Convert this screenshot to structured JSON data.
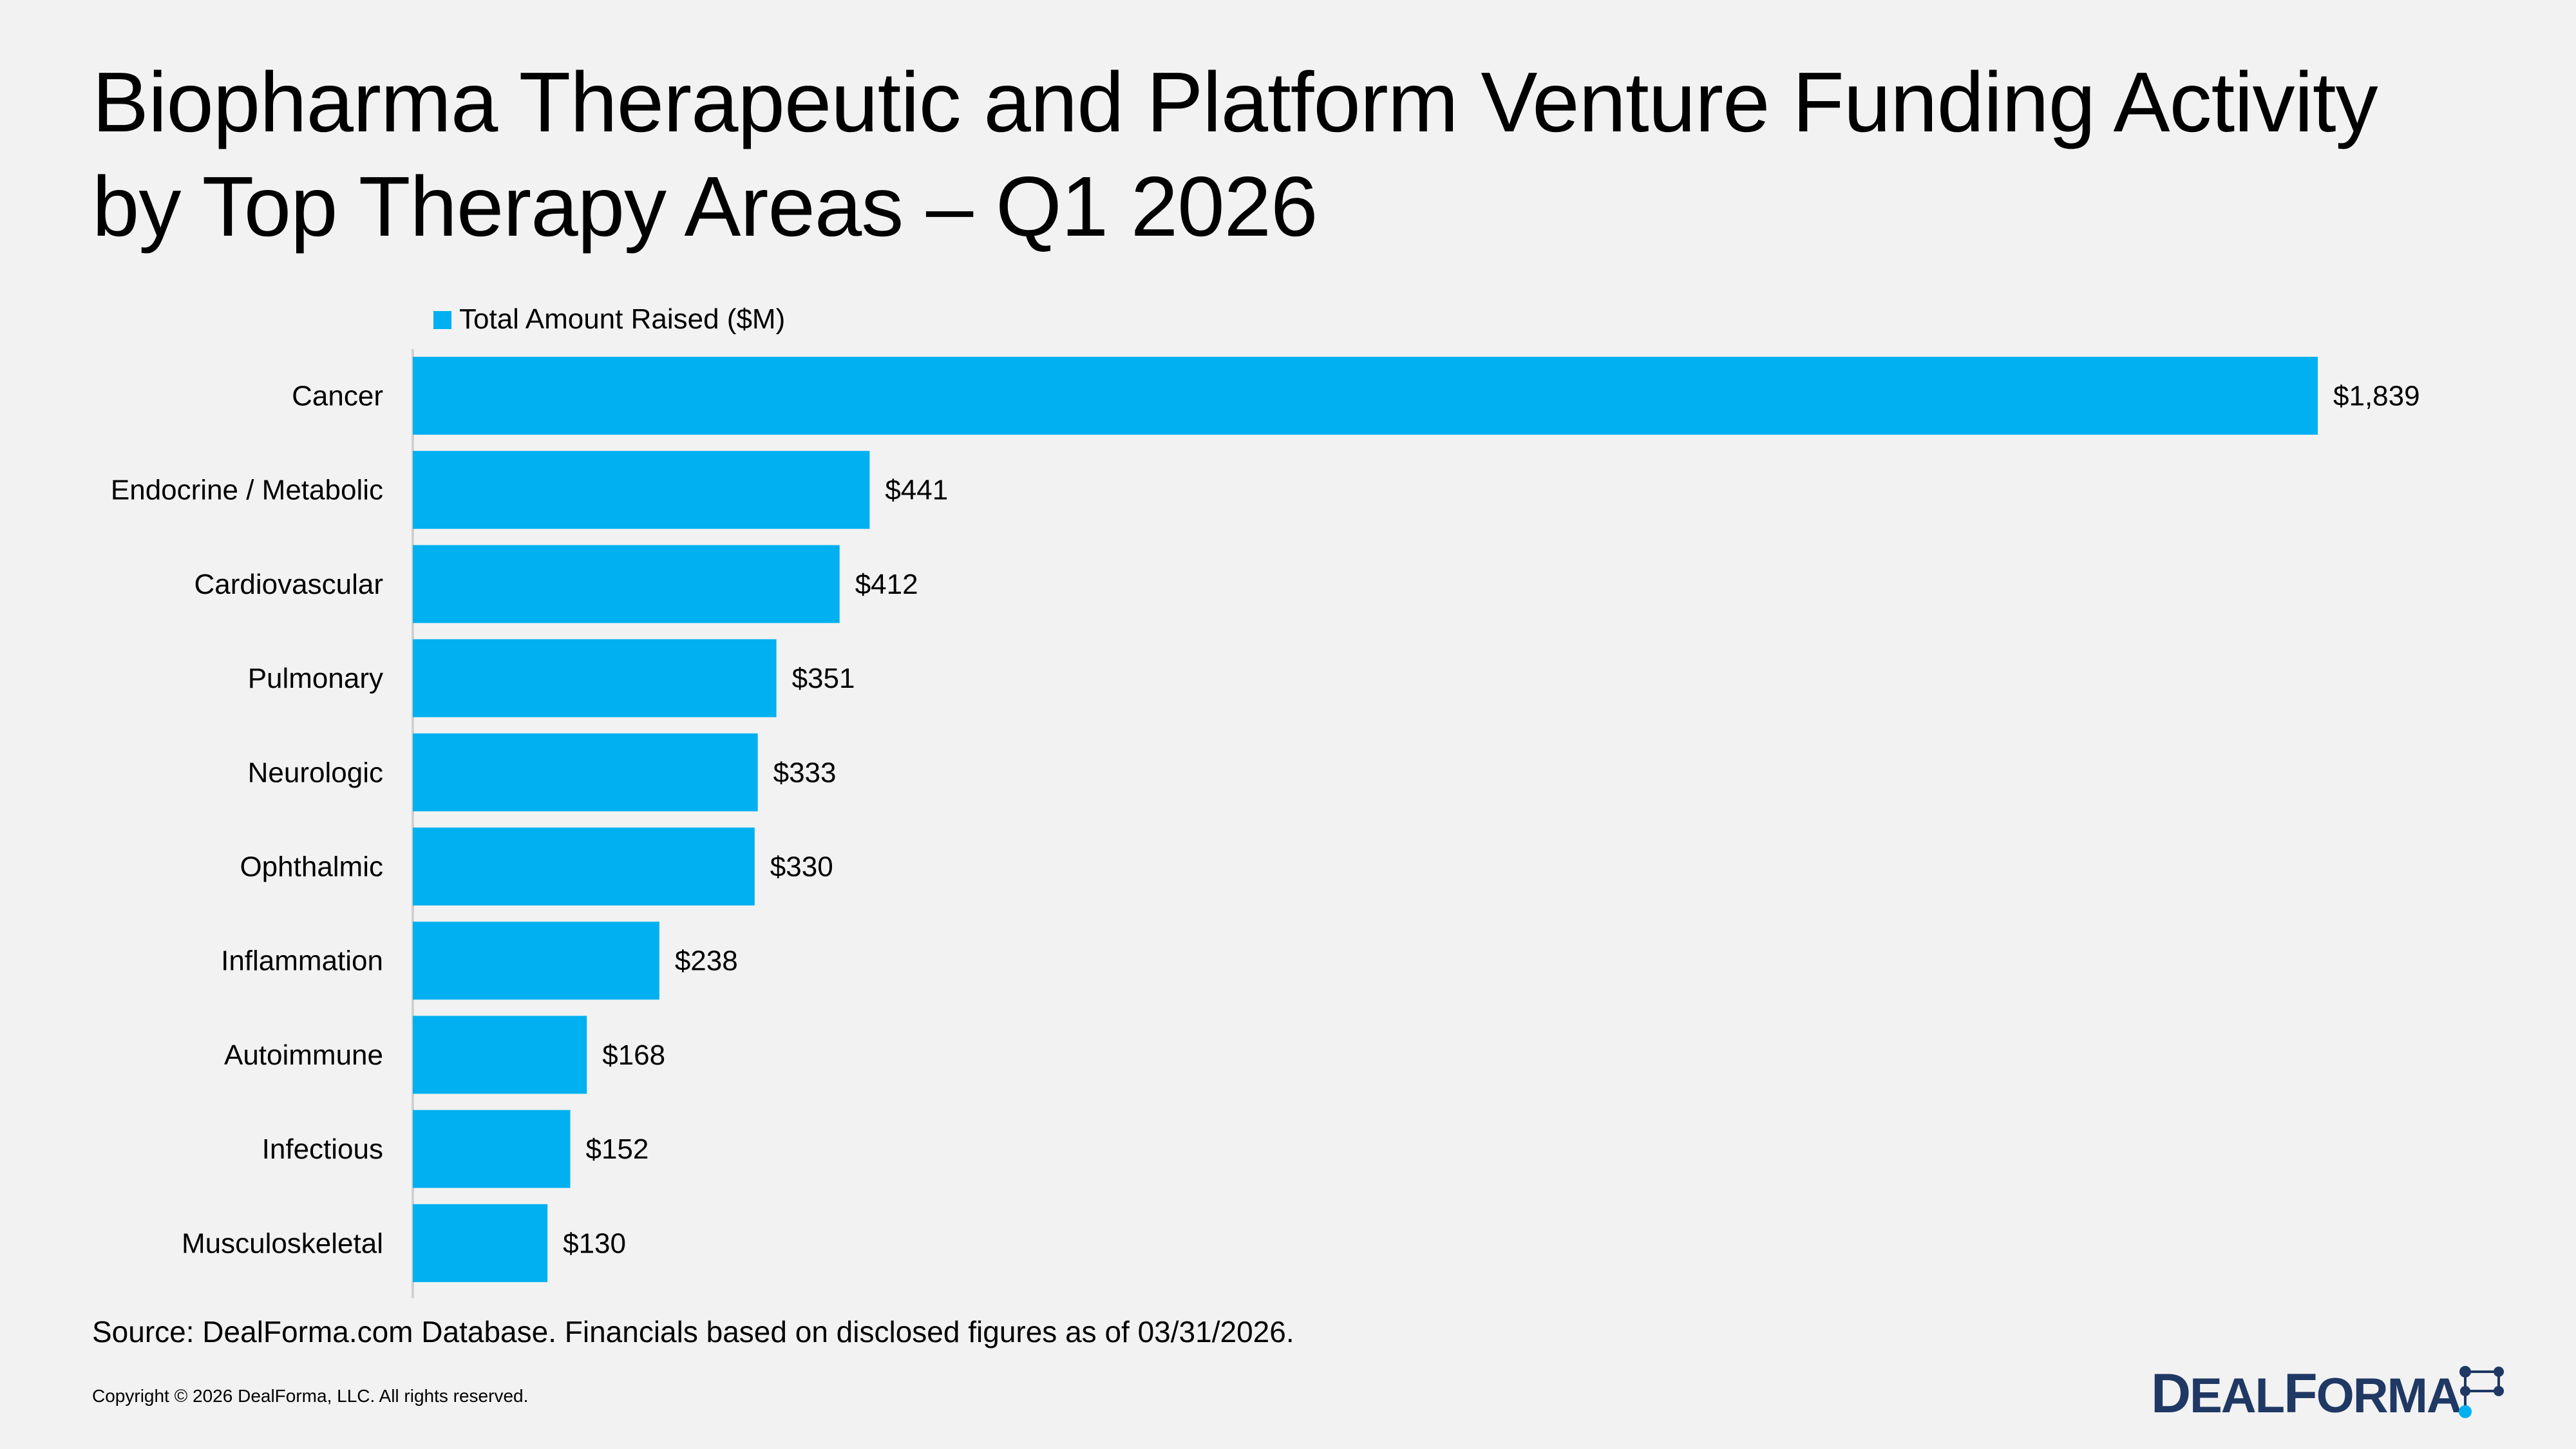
{
  "title": {
    "line1": "Biopharma Therapeutic and Platform Venture Funding Activity",
    "line2": "by Top Therapy Areas – Q1 2026"
  },
  "chart_data": {
    "type": "bar",
    "orientation": "horizontal",
    "categories": [
      "Cancer",
      "Endocrine / Metabolic",
      "Cardiovascular",
      "Pulmonary",
      "Neurologic",
      "Ophthalmic",
      "Inflammation",
      "Autoimmune",
      "Infectious",
      "Musculoskeletal"
    ],
    "series": [
      {
        "name": "Total Amount Raised ($M)",
        "values": [
          1839,
          441,
          412,
          351,
          333,
          330,
          238,
          168,
          152,
          130
        ],
        "labels": [
          "$1,839",
          "$441",
          "$412",
          "$351",
          "$333",
          "$330",
          "$238",
          "$168",
          "$152",
          "$130"
        ]
      }
    ],
    "xlim": [
      0,
      1839
    ],
    "grid": false,
    "legend_position": "top",
    "bar_color": "#00b0f0"
  },
  "footer": {
    "source": "Source: DealForma.com Database. Financials based on disclosed figures as of 03/31/2026.",
    "copyright": "Copyright © 2026 DealForma, LLC. All rights reserved."
  },
  "logo": {
    "text": "DEALFORMA",
    "color": "#1f3864"
  }
}
